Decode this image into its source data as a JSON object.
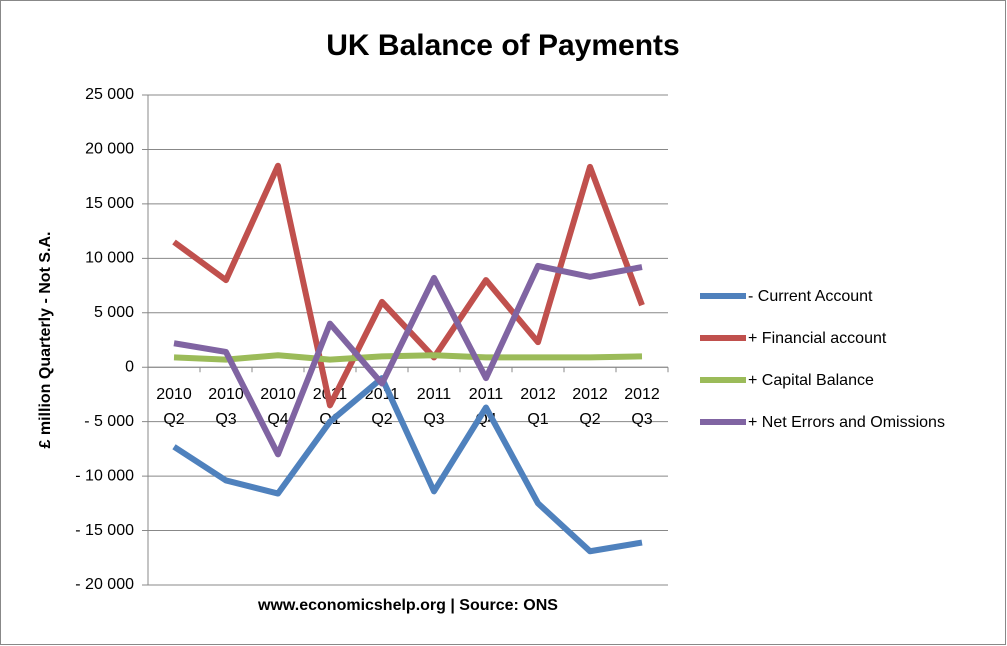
{
  "chart_data": {
    "type": "line",
    "title": "UK Balance of Payments",
    "y_label": "£ million Quarterly - Not S.A.",
    "x_label": "www.economicshelp.org | Source: ONS",
    "categories": [
      "2010 Q2",
      "2010 Q3",
      "2010 Q4",
      "2011 Q1",
      "2011 Q2",
      "2011 Q3",
      "2011 Q4",
      "2012 Q1",
      "2012 Q2",
      "2012 Q3"
    ],
    "series": [
      {
        "name": "- Current Account",
        "color": "#4f81bd",
        "values": [
          -7300,
          -10400,
          -11600,
          -5000,
          -1000,
          -11400,
          -3700,
          -12500,
          -16900,
          -16100
        ]
      },
      {
        "name": "+ Financial account",
        "color": "#c0504d",
        "values": [
          11500,
          8000,
          18500,
          -3500,
          6000,
          900,
          8000,
          2300,
          18400,
          5700
        ]
      },
      {
        "name": "+ Capital Balance",
        "color": "#9bbb59",
        "values": [
          900,
          700,
          1100,
          700,
          1000,
          1100,
          900,
          900,
          900,
          1000
        ]
      },
      {
        "name": "+ Net Errors and Omissions",
        "color": "#8064a2",
        "values": [
          2200,
          1400,
          -8000,
          4000,
          -1500,
          8200,
          -1000,
          9300,
          8300,
          9200
        ]
      }
    ],
    "ylim": [
      -20000,
      25000
    ],
    "yticks": [
      {
        "value": -20000,
        "label": "- 20 000"
      },
      {
        "value": -15000,
        "label": "- 15 000"
      },
      {
        "value": -10000,
        "label": "- 10 000"
      },
      {
        "value": -5000,
        "label": "- 5 000"
      },
      0,
      {
        "value": 5000,
        "label": "5 000"
      },
      {
        "value": 10000,
        "label": "10 000"
      },
      {
        "value": 15000,
        "label": "15 000"
      },
      {
        "value": 20000,
        "label": "20 000"
      },
      {
        "value": 25000,
        "label": "25 000"
      }
    ],
    "grid": true,
    "legend": "right"
  }
}
